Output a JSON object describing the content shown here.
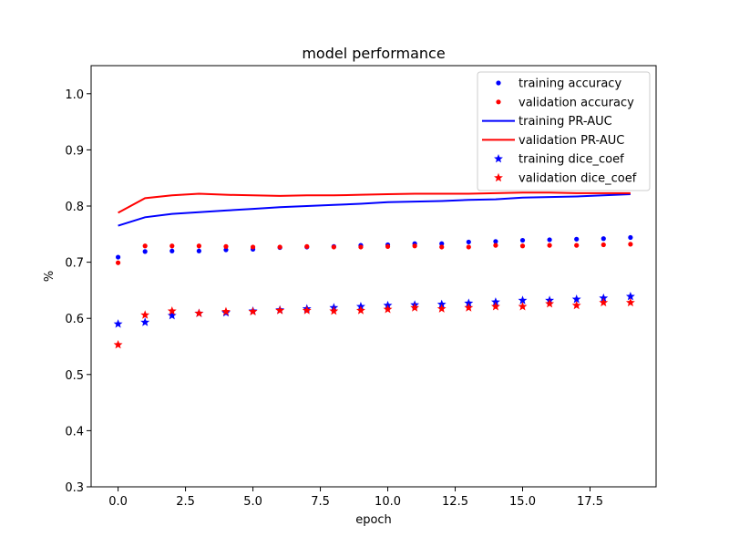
{
  "chart_data": {
    "type": "line",
    "title": "model performance",
    "xlabel": "epoch",
    "ylabel": "%",
    "xlim": [
      -1.0,
      19.95
    ],
    "ylim": [
      0.3,
      1.05
    ],
    "xticks": [
      0,
      2.5,
      5,
      7.5,
      10,
      12.5,
      15,
      17.5
    ],
    "xtick_labels": [
      "0.0",
      "2.5",
      "5.0",
      "7.5",
      "10.0",
      "12.5",
      "15.0",
      "17.5"
    ],
    "yticks": [
      0.3,
      0.4,
      0.5,
      0.6,
      0.7,
      0.8,
      0.9,
      1.0
    ],
    "ytick_labels": [
      "0.3",
      "0.4",
      "0.5",
      "0.6",
      "0.7",
      "0.8",
      "0.9",
      "1.0"
    ],
    "grid": false,
    "legend_position": "top-right",
    "x": [
      0,
      1,
      2,
      3,
      4,
      5,
      6,
      7,
      8,
      9,
      10,
      11,
      12,
      13,
      14,
      15,
      16,
      17,
      18,
      19
    ],
    "series": [
      {
        "name": "training accuracy",
        "marker": "dot",
        "line": false,
        "color": "#0000ff",
        "values": [
          0.709,
          0.719,
          0.72,
          0.72,
          0.722,
          0.723,
          0.726,
          0.727,
          0.728,
          0.73,
          0.731,
          0.733,
          0.733,
          0.736,
          0.737,
          0.739,
          0.74,
          0.741,
          0.742,
          0.744
        ]
      },
      {
        "name": "validation accuracy",
        "marker": "dot",
        "line": false,
        "color": "#ff0000",
        "values": [
          0.699,
          0.729,
          0.729,
          0.729,
          0.728,
          0.727,
          0.727,
          0.728,
          0.727,
          0.727,
          0.728,
          0.729,
          0.727,
          0.727,
          0.73,
          0.729,
          0.73,
          0.73,
          0.731,
          0.732
        ]
      },
      {
        "name": "training PR-AUC",
        "marker": "none",
        "line": true,
        "color": "#0000ff",
        "values": [
          0.765,
          0.78,
          0.786,
          0.789,
          0.792,
          0.795,
          0.798,
          0.8,
          0.802,
          0.804,
          0.807,
          0.808,
          0.809,
          0.811,
          0.812,
          0.815,
          0.816,
          0.817,
          0.819,
          0.821
        ]
      },
      {
        "name": "validation PR-AUC",
        "marker": "none",
        "line": true,
        "color": "#ff0000",
        "values": [
          0.788,
          0.814,
          0.819,
          0.822,
          0.82,
          0.819,
          0.818,
          0.819,
          0.819,
          0.82,
          0.821,
          0.822,
          0.822,
          0.822,
          0.823,
          0.824,
          0.824,
          0.823,
          0.823,
          0.823
        ]
      },
      {
        "name": "training dice_coef",
        "marker": "star",
        "line": false,
        "color": "#0000ff",
        "values": [
          0.59,
          0.593,
          0.605,
          0.609,
          0.61,
          0.613,
          0.615,
          0.617,
          0.619,
          0.621,
          0.623,
          0.624,
          0.625,
          0.627,
          0.629,
          0.632,
          0.632,
          0.634,
          0.636,
          0.639
        ]
      },
      {
        "name": "validation dice_coef",
        "marker": "star",
        "line": false,
        "color": "#ff0000",
        "values": [
          0.553,
          0.606,
          0.613,
          0.609,
          0.612,
          0.612,
          0.614,
          0.614,
          0.613,
          0.614,
          0.616,
          0.619,
          0.617,
          0.619,
          0.621,
          0.621,
          0.626,
          0.623,
          0.628,
          0.628
        ]
      }
    ]
  }
}
